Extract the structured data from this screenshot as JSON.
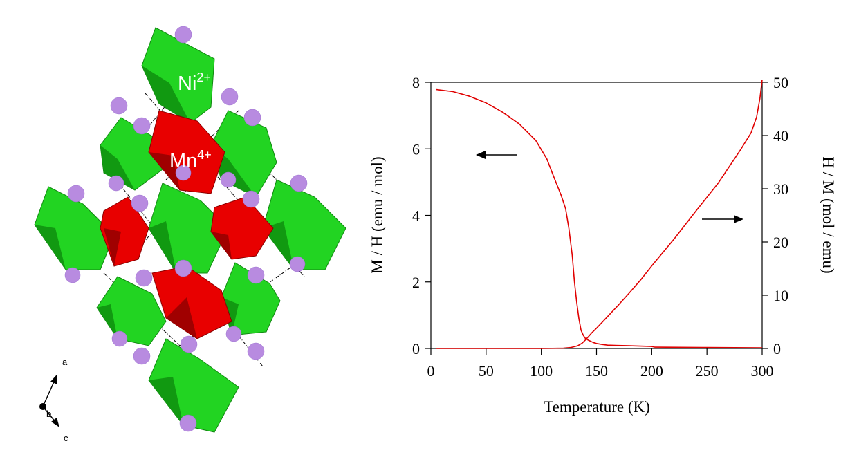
{
  "structure": {
    "labels": {
      "ni_base": "Ni",
      "ni_charge": "2+",
      "mn_base": "Mn",
      "mn_charge": "4+"
    },
    "axes_triad": {
      "a": "a",
      "b": "b",
      "c": "c"
    },
    "colors": {
      "ni_octahedron": "#22d422",
      "mn_octahedron": "#e80000",
      "atom": "#b88be0",
      "cell_line": "#000000"
    }
  },
  "chart_data": {
    "type": "line",
    "xlabel": "Temperature (K)",
    "ylabel_left": "M / H (emu / mol)",
    "ylabel_right": "H / M (mol / emu)",
    "xlim": [
      0,
      300
    ],
    "ylim_left": [
      0,
      8
    ],
    "ylim_right": [
      0,
      50
    ],
    "x_ticks": [
      "0",
      "50",
      "100",
      "150",
      "200",
      "250",
      "300"
    ],
    "y_ticks_left": [
      "0",
      "2",
      "4",
      "6",
      "8"
    ],
    "y_ticks_right": [
      "0",
      "10",
      "20",
      "30",
      "40",
      "50"
    ],
    "grid": false,
    "line_color": "#e00000",
    "series": [
      {
        "axis": "left",
        "x": [
          5,
          20,
          35,
          50,
          65,
          80,
          95,
          105,
          112,
          118,
          122,
          125,
          128,
          130,
          132,
          134,
          136,
          138,
          140,
          143,
          147,
          150,
          155,
          160,
          170,
          180,
          200,
          203,
          250,
          300
        ],
        "y": [
          7.78,
          7.72,
          7.58,
          7.38,
          7.1,
          6.75,
          6.25,
          5.7,
          5.1,
          4.6,
          4.2,
          3.6,
          2.8,
          2.0,
          1.4,
          0.9,
          0.55,
          0.4,
          0.3,
          0.24,
          0.18,
          0.15,
          0.12,
          0.1,
          0.09,
          0.08,
          0.06,
          0.04,
          0.03,
          0.02
        ]
      },
      {
        "axis": "right",
        "x": [
          5,
          50,
          100,
          120,
          127,
          133,
          137,
          140,
          143,
          146,
          150,
          155,
          160,
          170,
          180,
          190,
          200,
          220,
          240,
          260,
          280,
          290,
          295,
          298,
          300
        ],
        "y": [
          0.0,
          0.0,
          0.0,
          0.05,
          0.2,
          0.5,
          1.0,
          1.6,
          2.3,
          3.0,
          3.8,
          4.9,
          6.0,
          8.2,
          10.5,
          12.9,
          15.5,
          20.5,
          25.8,
          31.0,
          37.2,
          40.5,
          43.5,
          47.0,
          50.5
        ]
      }
    ]
  }
}
